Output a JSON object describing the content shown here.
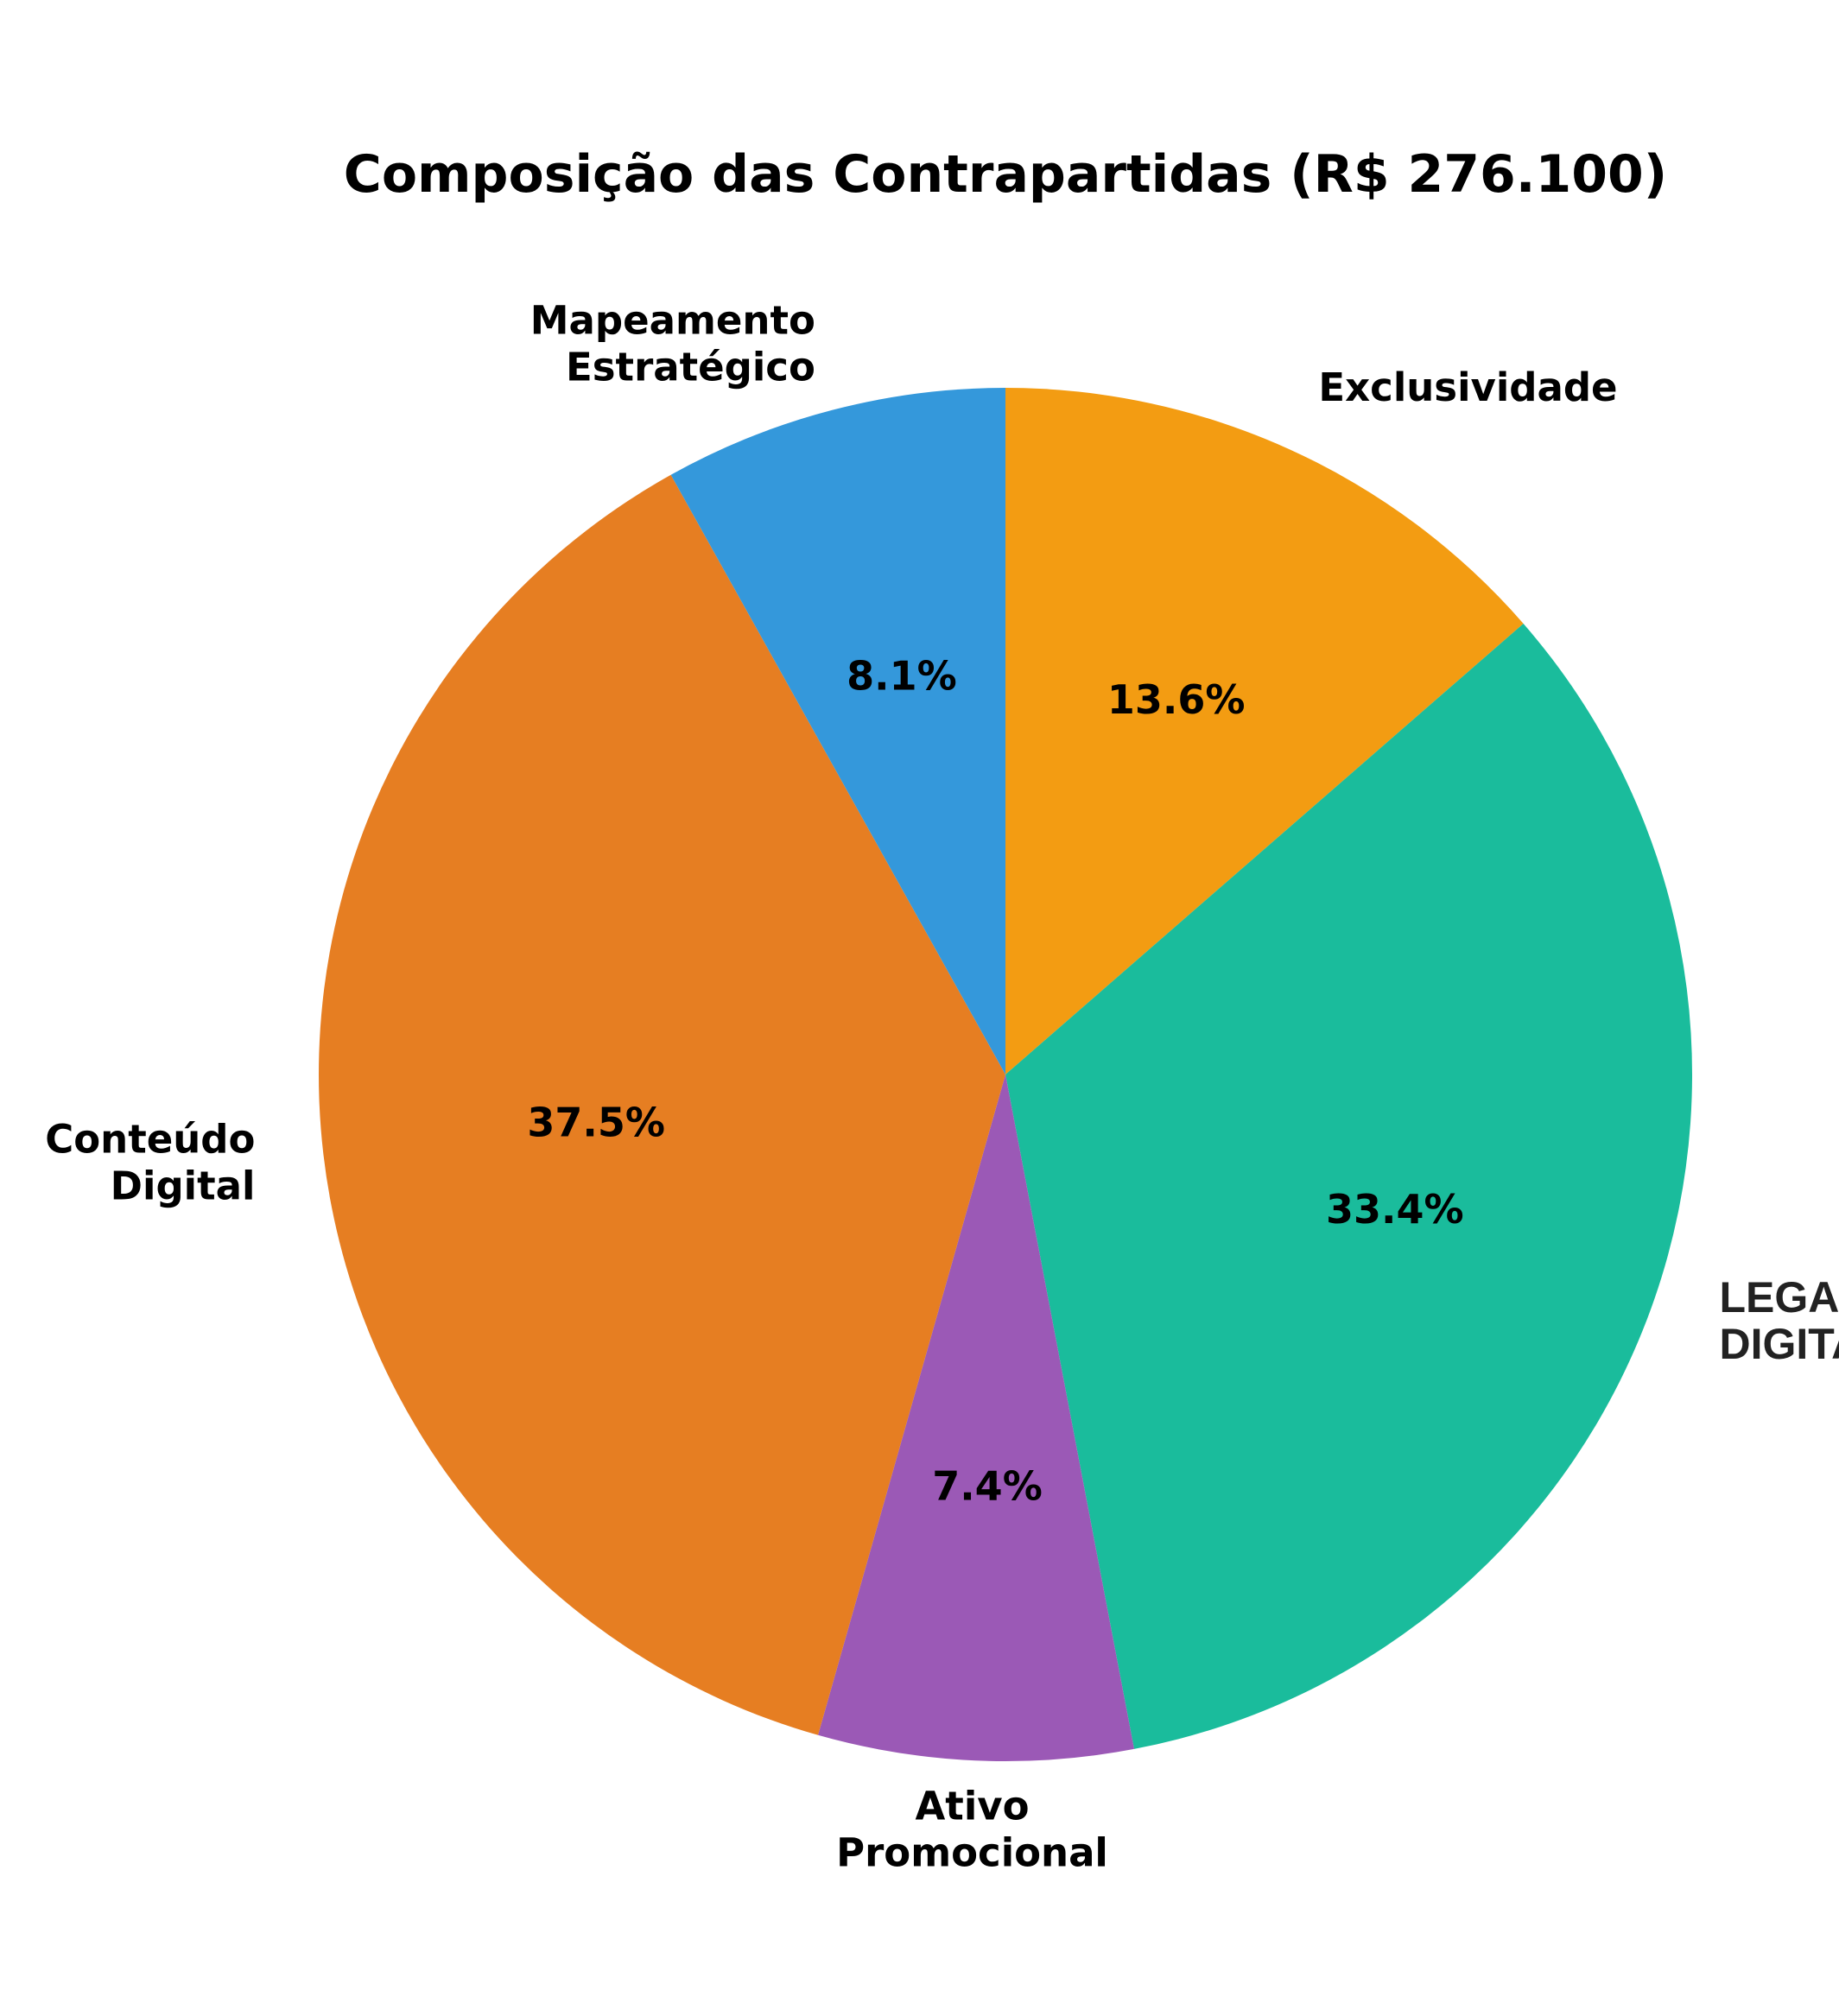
{
  "chart_data": {
    "type": "pie",
    "title": "Composição das Contrapartidas (R$ 276.100)",
    "start_angle_deg": 90,
    "direction": "clockwise",
    "slices": [
      {
        "label": "Exclusividade",
        "lines": [
          "Exclusividade"
        ],
        "value": 13.6,
        "pct_label": "13.6%",
        "color": "#F39C12"
      },
      {
        "label": "LEGADO DIGITAL",
        "lines": [
          "LEGADO",
          "DIGITAL"
        ],
        "value": 33.4,
        "pct_label": "33.4%",
        "color": "#1ABC9C"
      },
      {
        "label": "Ativo Promocional",
        "lines": [
          "Ativo",
          "Promocional"
        ],
        "value": 7.4,
        "pct_label": "7.4%",
        "color": "#9B59B6"
      },
      {
        "label": "Conteúdo Digital",
        "lines": [
          "Conteúdo",
          "Digital"
        ],
        "value": 37.5,
        "pct_label": "37.5%",
        "color": "#E67E22"
      },
      {
        "label": "Mapeamento Estratégico",
        "lines": [
          "Mapeamento",
          "Estratégico"
        ],
        "value": 8.1,
        "pct_label": "8.1%",
        "color": "#3498DB"
      }
    ]
  }
}
